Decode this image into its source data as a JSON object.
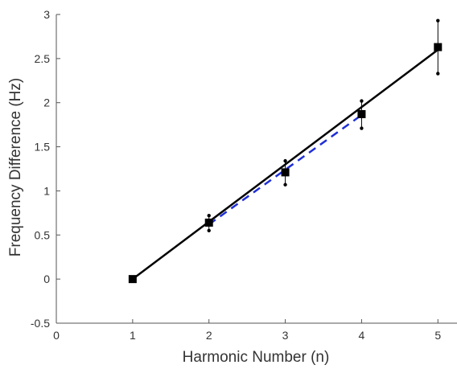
{
  "chart_data": {
    "type": "scatter",
    "title": "",
    "xlabel": "Harmonic Number (n)",
    "ylabel": "Frequency Difference (Hz)",
    "xlim": [
      0,
      5.25
    ],
    "ylim": [
      -0.5,
      3
    ],
    "xticks": [
      0,
      1,
      2,
      3,
      4,
      5
    ],
    "xtick_labels": [
      "0",
      "1",
      "2",
      "3",
      "4",
      "5"
    ],
    "yticks": [
      -0.5,
      0,
      0.5,
      1,
      1.5,
      2,
      2.5,
      3
    ],
    "ytick_labels": [
      "-0.5",
      "0",
      "0.5",
      "1",
      "1.5",
      "2",
      "2.5",
      "3"
    ],
    "grid": false,
    "legend": false,
    "series": [
      {
        "marker": "square",
        "color": "#000000",
        "x": [
          1,
          2,
          3,
          4,
          5
        ],
        "y": [
          0,
          0.64,
          1.21,
          1.87,
          2.63
        ],
        "error_low": [
          null,
          0.55,
          1.07,
          1.71,
          2.33
        ],
        "error_high": [
          null,
          0.72,
          1.34,
          2.02,
          2.93
        ]
      }
    ],
    "lines": [
      {
        "style": "solid",
        "color": "#000000",
        "x": [
          1,
          5
        ],
        "y": [
          0,
          2.6
        ]
      },
      {
        "style": "dashed",
        "color": "#1f2fd6",
        "x": [
          2,
          4
        ],
        "y": [
          0.62,
          1.86
        ]
      }
    ]
  }
}
